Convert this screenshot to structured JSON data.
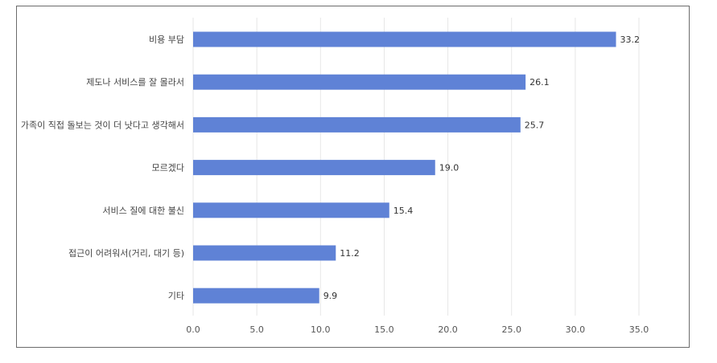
{
  "chart_data": {
    "type": "bar",
    "orientation": "horizontal",
    "title": "",
    "xlabel": "",
    "ylabel": "",
    "categories": [
      "비용 부담",
      "제도나 서비스를 잘 몰라서",
      "가족이 직접 돌보는 것이 더 낫다고 생각해서",
      "모르겠다",
      "서비스 질에 대한 불신",
      "접근이 어려워서(거리, 대기 등)",
      "기타"
    ],
    "values": [
      33.2,
      26.1,
      25.7,
      19.0,
      15.4,
      11.2,
      9.9
    ],
    "value_labels": [
      "33.2",
      "26.1",
      "25.7",
      "19.0",
      "15.4",
      "11.2",
      "9.9"
    ],
    "xlim": [
      0,
      35
    ],
    "xticks": [
      0,
      5,
      10,
      15,
      20,
      25,
      30,
      35
    ],
    "xtick_labels": [
      "0.0",
      "5.0",
      "10.0",
      "15.0",
      "20.0",
      "25.0",
      "30.0",
      "35.0"
    ],
    "grid": "vertical",
    "bar_color": "#5f82d6",
    "grid_color": "#e6e6e6"
  }
}
